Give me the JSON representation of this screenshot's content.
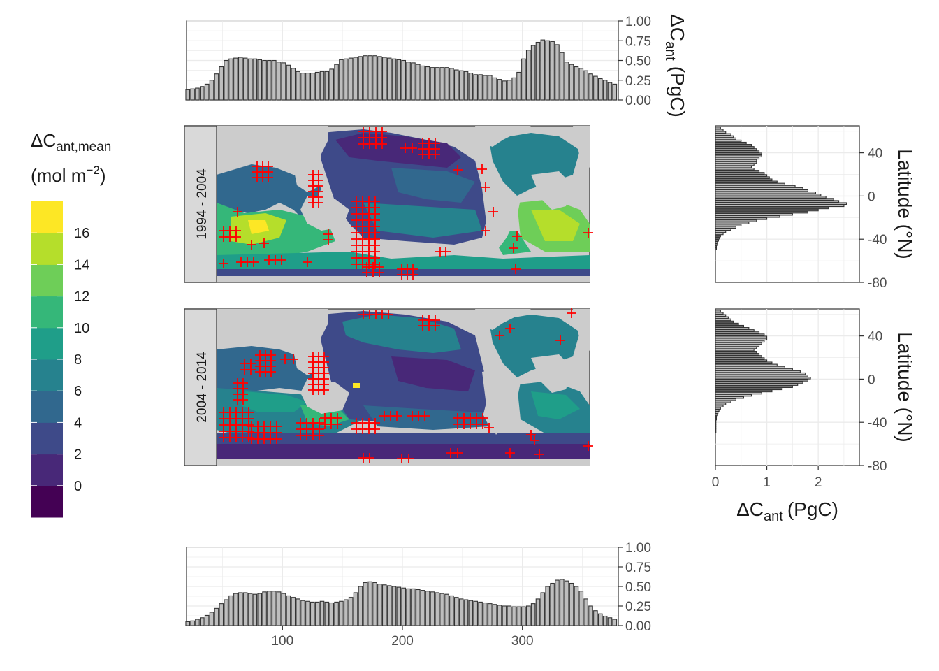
{
  "colors": {
    "land": "#cccccc",
    "panel_border": "#333333",
    "strip_bg": "#d9d9d9",
    "bar_fill": "#bebebe",
    "bar_stroke": "#333333",
    "marker": "#ff0000",
    "grid": "#ebebeb"
  },
  "legend": {
    "title_main": "ΔC",
    "title_sub": "ant,mean",
    "unit_open": "(mol m",
    "unit_sup": "−2",
    "unit_close": ")",
    "breaks": [
      "16",
      "14",
      "12",
      "10",
      "8",
      "6",
      "4",
      "2",
      "0"
    ],
    "palette": [
      "#440154",
      "#482878",
      "#3e4a89",
      "#31688e",
      "#26828e",
      "#1f9e89",
      "#35b779",
      "#6ece58",
      "#b5de2b",
      "#fde725"
    ]
  },
  "chart_data": [
    {
      "type": "bar",
      "panel": "top-longitude-1994-2004",
      "xlim": [
        20,
        380
      ],
      "ylim": [
        0,
        1
      ],
      "y_ticks": [
        "0.00",
        "0.25",
        "0.50",
        "0.75",
        "1.00"
      ],
      "ylabel_main": "ΔC",
      "ylabel_sub": "ant",
      "ylabel_unit": "(PgC)",
      "x_start": 21,
      "x_step": 4,
      "values": [
        0.13,
        0.14,
        0.15,
        0.17,
        0.2,
        0.25,
        0.33,
        0.42,
        0.5,
        0.52,
        0.53,
        0.54,
        0.53,
        0.52,
        0.52,
        0.51,
        0.5,
        0.5,
        0.5,
        0.48,
        0.47,
        0.44,
        0.4,
        0.36,
        0.34,
        0.34,
        0.34,
        0.35,
        0.36,
        0.36,
        0.39,
        0.45,
        0.51,
        0.52,
        0.53,
        0.54,
        0.55,
        0.56,
        0.56,
        0.56,
        0.55,
        0.54,
        0.53,
        0.52,
        0.51,
        0.5,
        0.48,
        0.47,
        0.45,
        0.43,
        0.42,
        0.41,
        0.41,
        0.41,
        0.41,
        0.4,
        0.38,
        0.37,
        0.36,
        0.34,
        0.32,
        0.32,
        0.31,
        0.31,
        0.28,
        0.26,
        0.24,
        0.25,
        0.28,
        0.35,
        0.52,
        0.63,
        0.69,
        0.73,
        0.76,
        0.75,
        0.74,
        0.7,
        0.6,
        0.48,
        0.45,
        0.42,
        0.4,
        0.37,
        0.33,
        0.3,
        0.27,
        0.25,
        0.22,
        0.2
      ]
    },
    {
      "type": "bar",
      "panel": "bottom-longitude-2004-2014",
      "xlim": [
        20,
        380
      ],
      "ylim": [
        0,
        1
      ],
      "x_ticks": [
        "100",
        "200",
        "300"
      ],
      "y_ticks": [
        "0.00",
        "0.25",
        "0.50",
        "0.75",
        "1.00"
      ],
      "x_start": 21,
      "x_step": 4,
      "values": [
        0.05,
        0.06,
        0.08,
        0.1,
        0.13,
        0.17,
        0.22,
        0.28,
        0.33,
        0.38,
        0.41,
        0.42,
        0.42,
        0.41,
        0.4,
        0.41,
        0.43,
        0.44,
        0.44,
        0.43,
        0.41,
        0.38,
        0.36,
        0.34,
        0.32,
        0.31,
        0.3,
        0.3,
        0.31,
        0.3,
        0.29,
        0.3,
        0.31,
        0.33,
        0.36,
        0.42,
        0.5,
        0.55,
        0.56,
        0.55,
        0.53,
        0.52,
        0.51,
        0.5,
        0.49,
        0.48,
        0.47,
        0.47,
        0.46,
        0.45,
        0.44,
        0.43,
        0.42,
        0.41,
        0.4,
        0.38,
        0.36,
        0.34,
        0.33,
        0.32,
        0.31,
        0.3,
        0.29,
        0.28,
        0.27,
        0.26,
        0.25,
        0.25,
        0.24,
        0.24,
        0.24,
        0.25,
        0.28,
        0.34,
        0.42,
        0.5,
        0.54,
        0.58,
        0.59,
        0.57,
        0.54,
        0.5,
        0.44,
        0.34,
        0.25,
        0.19,
        0.15,
        0.12,
        0.1,
        0.08
      ]
    },
    {
      "type": "bar",
      "panel": "right-latitude-1994-2004",
      "orientation": "horizontal",
      "xlim": [
        0,
        2.8
      ],
      "ylim": [
        -80,
        65
      ],
      "y_ticks": [
        "40",
        "0",
        "-40",
        "-80"
      ],
      "ylabel": "Latitude (°N)",
      "y_start": 63,
      "y_step": -2,
      "values": [
        0.1,
        0.15,
        0.2,
        0.3,
        0.35,
        0.4,
        0.5,
        0.6,
        0.7,
        0.75,
        0.8,
        0.85,
        0.9,
        0.9,
        0.85,
        0.8,
        0.8,
        0.75,
        0.7,
        0.75,
        0.85,
        0.95,
        1.0,
        1.05,
        1.1,
        1.2,
        1.35,
        1.55,
        1.7,
        1.8,
        1.95,
        2.05,
        2.15,
        2.3,
        2.4,
        2.55,
        2.5,
        2.2,
        2.0,
        1.8,
        1.5,
        1.25,
        1.0,
        0.8,
        0.65,
        0.5,
        0.4,
        0.3,
        0.2,
        0.15,
        0.1,
        0.08,
        0.06,
        0.04,
        0.03,
        0.02,
        0.02
      ]
    },
    {
      "type": "bar",
      "panel": "right-latitude-2004-2014",
      "orientation": "horizontal",
      "xlim": [
        0,
        2.8
      ],
      "ylim": [
        -80,
        65
      ],
      "x_ticks": [
        "0",
        "1",
        "2"
      ],
      "y_ticks": [
        "40",
        "0",
        "-40",
        "-80"
      ],
      "xlabel_main": "ΔC",
      "xlabel_sub": "ant",
      "xlabel_unit": "(PgC)",
      "ylabel": "Latitude (°N)",
      "y_start": 63,
      "y_step": -2,
      "values": [
        0.1,
        0.15,
        0.2,
        0.25,
        0.3,
        0.35,
        0.45,
        0.55,
        0.65,
        0.75,
        0.85,
        0.95,
        1.0,
        1.0,
        0.95,
        0.9,
        0.85,
        0.8,
        0.75,
        0.8,
        0.85,
        0.9,
        0.95,
        1.0,
        1.1,
        1.2,
        1.35,
        1.5,
        1.65,
        1.75,
        1.8,
        1.85,
        1.8,
        1.7,
        1.6,
        1.5,
        1.3,
        1.1,
        0.9,
        0.7,
        0.55,
        0.4,
        0.3,
        0.2,
        0.15,
        0.1,
        0.07,
        0.05,
        0.03,
        0.02,
        0.02,
        0.01,
        0.01,
        0.01,
        0.01,
        0.01,
        0.01
      ]
    }
  ],
  "maps": [
    {
      "strip_label": "1994 - 2004"
    },
    {
      "strip_label": "2004 - 2014"
    }
  ]
}
